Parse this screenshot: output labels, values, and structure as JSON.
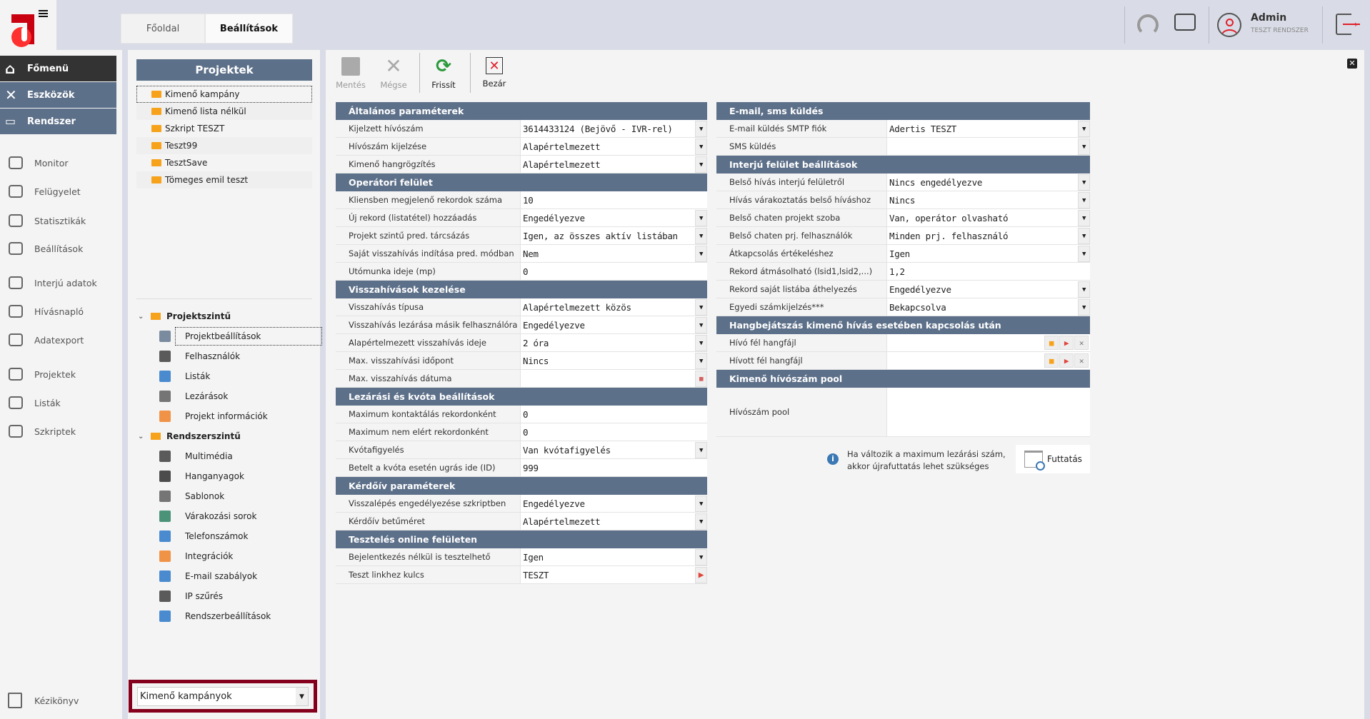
{
  "header": {
    "tabs": [
      "Főoldal",
      "Beállítások"
    ],
    "user_name": "Admin",
    "user_system": "TESZT RENDSZER"
  },
  "sidebar": {
    "main": [
      "Főmenü",
      "Eszközök",
      "Rendszer"
    ],
    "items": [
      "Monitor",
      "Felügyelet",
      "Statisztikák",
      "Beállítások",
      "Interjú adatok",
      "Hívásnapló",
      "Adatexport",
      "Projektek",
      "Listák",
      "Szkriptek"
    ],
    "footer": "Kézikönyv"
  },
  "tree": {
    "title": "Projektek",
    "projects": [
      "Kimenő kampány",
      "Kimenő lista nélkül",
      "Szkript TESZT",
      "Teszt99",
      "TesztSave",
      "Tömeges emil teszt"
    ],
    "groups": [
      {
        "label": "Projektszintű",
        "items": [
          "Projektbeállítások",
          "Felhasználók",
          "Listák",
          "Lezárások",
          "Projekt információk"
        ]
      },
      {
        "label": "Rendszerszintű",
        "items": [
          "Multimédia",
          "Hanganyagok",
          "Sablonok",
          "Várakozási sorok",
          "Telefonszámok",
          "Integrációk",
          "E-mail szabályok",
          "IP szűrés",
          "Rendszerbeállítások"
        ]
      }
    ],
    "filter_value": "Kimenő kampányok"
  },
  "toolbar": {
    "save": "Mentés",
    "cancel": "Mégse",
    "refresh": "Frissít",
    "close": "Bezár"
  },
  "left_sections": [
    {
      "title": "Általános paraméterek",
      "rows": [
        {
          "label": "Kijelzett hívószám",
          "value": "3614433124 (Bejövő - IVR-rel)",
          "control": "select"
        },
        {
          "label": "Hívószám kijelzése",
          "value": "Alapértelmezett",
          "control": "select"
        },
        {
          "label": "Kimenő hangrögzítés",
          "value": "Alapértelmezett",
          "control": "select"
        }
      ]
    },
    {
      "title": "Operátori felület",
      "rows": [
        {
          "label": "Kliensben megjelenő rekordok száma",
          "value": "10",
          "control": "text"
        },
        {
          "label": "Új rekord (listatétel) hozzáadás",
          "value": "Engedélyezve",
          "control": "select"
        },
        {
          "label": "Projekt szintű pred. tárcsázás",
          "value": "Igen, az összes aktív listában",
          "control": "select"
        },
        {
          "label": "Saját visszahívás indítása pred. módban",
          "value": "Nem",
          "control": "select"
        },
        {
          "label": "Utómunka ideje (mp)",
          "value": "0",
          "control": "text"
        }
      ]
    },
    {
      "title": "Visszahívások kezelése",
      "rows": [
        {
          "label": "Visszahívás típusa",
          "value": "Alapértelmezett közös",
          "control": "select"
        },
        {
          "label": "Visszahívás lezárása másik felhasználóra",
          "value": "Engedélyezve",
          "control": "select"
        },
        {
          "label": "Alapértelmezett visszahívás ideje",
          "value": "2 óra",
          "control": "select"
        },
        {
          "label": "Max. visszahívási időpont",
          "value": "Nincs",
          "control": "select"
        },
        {
          "label": "Max. visszahívás dátuma",
          "value": "",
          "control": "date"
        }
      ]
    },
    {
      "title": "Lezárási és kvóta beállítások",
      "rows": [
        {
          "label": "Maximum kontaktálás rekordonként",
          "value": "0",
          "control": "text"
        },
        {
          "label": "Maximum nem elért rekordonként",
          "value": "0",
          "control": "text"
        },
        {
          "label": "Kvótafigyelés",
          "value": "Van kvótafigyelés",
          "control": "select"
        },
        {
          "label": "Betelt a kvóta esetén ugrás ide (ID)",
          "value": "999",
          "control": "text"
        }
      ]
    },
    {
      "title": "Kérdőív paraméterek",
      "rows": [
        {
          "label": "Visszalépés engedélyezése szkriptben",
          "value": "Engedélyezve",
          "control": "select"
        },
        {
          "label": "Kérdőív betűméret",
          "value": "Alapértelmezett",
          "control": "select"
        }
      ]
    },
    {
      "title": "Tesztelés online felületen",
      "rows": [
        {
          "label": "Bejelentkezés nélkül is tesztelhető",
          "value": "Igen",
          "control": "select"
        },
        {
          "label": "Teszt linkhez kulcs",
          "value": "TESZT",
          "control": "link"
        }
      ]
    }
  ],
  "right_sections": [
    {
      "title": "E-mail, sms küldés",
      "rows": [
        {
          "label": "E-mail küldés SMTP fiók",
          "value": "Adertis TESZT",
          "control": "select"
        },
        {
          "label": "SMS küldés",
          "value": "",
          "control": "select"
        }
      ]
    },
    {
      "title": "Interjú felület beállítások",
      "rows": [
        {
          "label": "Belső hívás interjú felületről",
          "value": "Nincs engedélyezve",
          "control": "select"
        },
        {
          "label": "Hívás várakoztatás belső híváshoz",
          "value": "Nincs",
          "control": "select"
        },
        {
          "label": "Belső chaten projekt szoba",
          "value": "Van, operátor olvasható",
          "control": "select"
        },
        {
          "label": "Belső chaten prj. felhasználók",
          "value": "Minden prj. felhasználó",
          "control": "select"
        },
        {
          "label": "Átkapcsolás értékeléshez",
          "value": "Igen",
          "control": "select"
        },
        {
          "label": "Rekord átmásolható (lsid1,lsid2,...)",
          "value": "1,2",
          "control": "text"
        },
        {
          "label": "Rekord saját listába áthelyezés",
          "value": "Engedélyezve",
          "control": "select"
        },
        {
          "label": "Egyedi számkijelzés***",
          "value": "Bekapcsolva",
          "control": "select"
        }
      ]
    },
    {
      "title": "Hangbejátszás kimenő hívás esetében kapcsolás után",
      "rows": [
        {
          "label": "Hívó fél hangfájl",
          "value": "",
          "control": "file"
        },
        {
          "label": "Hívott fél hangfájl",
          "value": "",
          "control": "file"
        }
      ]
    },
    {
      "title": "Kimenő hívószám pool",
      "rows": [
        {
          "label": "Hívószám pool",
          "value": "",
          "control": "textarea"
        }
      ]
    }
  ],
  "note": {
    "line1": "Ha változik a maximum lezárási szám,",
    "line2": "akkor újrafuttatás lehet szükséges"
  },
  "run_button": "Futtatás",
  "colors": {
    "header": "#5d7089",
    "dark": "#333333",
    "accent_red": "#e0463a",
    "logo_red": "#c8000f",
    "frame": "#85001c"
  }
}
